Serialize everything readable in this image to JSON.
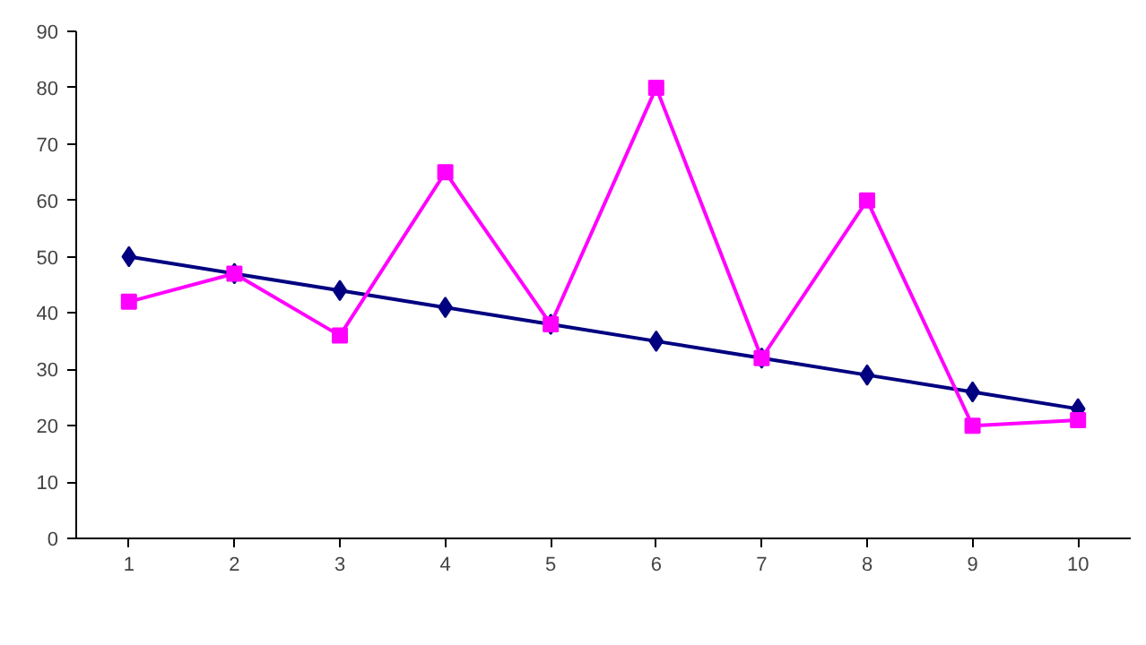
{
  "chart_data": {
    "type": "line",
    "categories": [
      "1",
      "2",
      "3",
      "4",
      "5",
      "6",
      "7",
      "8",
      "9",
      "10"
    ],
    "series": [
      {
        "color": "#000080",
        "marker": "diamond",
        "values": [
          50,
          47,
          44,
          41,
          38,
          35,
          32,
          29,
          26,
          23
        ]
      },
      {
        "color": "#ff00ff",
        "marker": "square",
        "values": [
          42,
          47,
          36,
          65,
          38,
          80,
          32,
          60,
          20,
          21
        ]
      }
    ],
    "ylim": [
      0,
      90
    ],
    "yticks": [
      0,
      10,
      20,
      30,
      40,
      50,
      60,
      70,
      80,
      90
    ],
    "grid": false,
    "line_style": "solid"
  }
}
